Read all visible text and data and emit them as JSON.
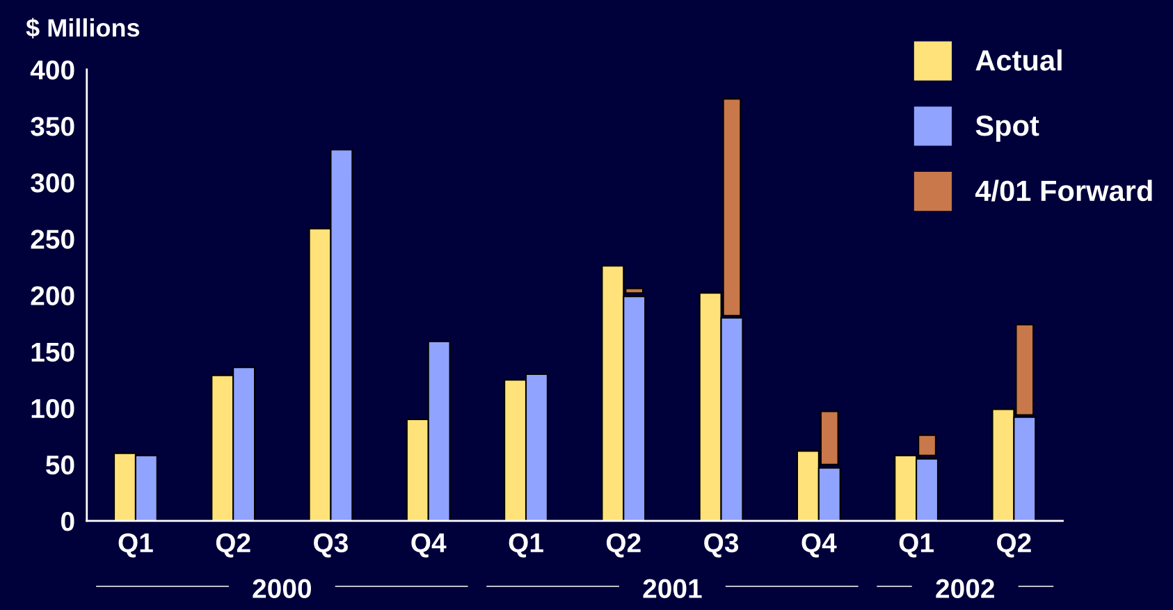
{
  "chart_data": {
    "type": "bar",
    "ylabel": "$ Millions",
    "categories": [
      "Q1",
      "Q2",
      "Q3",
      "Q4",
      "Q1",
      "Q2",
      "Q3",
      "Q4",
      "Q1",
      "Q2"
    ],
    "series": [
      {
        "name": "Actual",
        "color": "#ffe27a",
        "values": [
          60,
          129,
          259,
          90,
          125,
          226,
          202,
          62,
          58,
          99
        ]
      },
      {
        "name": "Spot",
        "color": "#8fa3ff",
        "values": [
          58,
          136,
          329,
          159,
          130,
          199,
          180,
          47,
          55,
          92
        ]
      },
      {
        "name": "4/01 Forward",
        "color": "#c8784a",
        "base": [
          null,
          null,
          null,
          null,
          null,
          202,
          182,
          50,
          58,
          94
        ],
        "values": [
          null,
          null,
          null,
          null,
          null,
          4,
          192,
          47,
          18,
          80
        ]
      }
    ],
    "ylim": [
      0,
      400
    ],
    "yticks": [
      0,
      50,
      100,
      150,
      200,
      250,
      300,
      350,
      400
    ],
    "annotations": [
      "2000",
      "2001",
      "2002"
    ],
    "legend": "top right",
    "grid": false
  }
}
